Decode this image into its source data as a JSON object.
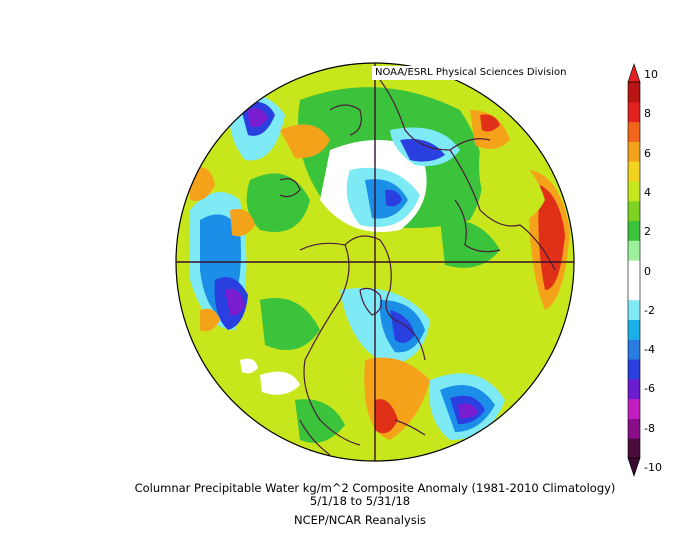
{
  "credit": "NOAA/ESRL Physical Sciences Division",
  "caption": {
    "line1": "Columnar Precipitable Water kg/m^2 Composite Anomaly (1981-2010 Climatology)",
    "line2": "5/1/18  to 5/31/18",
    "line3": "NCEP/NCAR Reanalysis"
  },
  "colorbar": {
    "labels": [
      "10",
      "8",
      "6",
      "4",
      "2",
      "0",
      "-2",
      "-4",
      "-6",
      "-8",
      "-10"
    ],
    "colors": [
      "#4a0b3a",
      "#8a0e8a",
      "#c21ec2",
      "#6a1dd0",
      "#2a3fe0",
      "#2a7be0",
      "#1bb1e8",
      "#7eeaf5",
      "#ffffff",
      "#ffffff",
      "#9cf09c",
      "#3cc33c",
      "#7ed321",
      "#c8e61c",
      "#f2d322",
      "#f5a21b",
      "#f2661c",
      "#e32020",
      "#b81414"
    ]
  },
  "palette": {
    "strong_wet": "#e03018",
    "wet": "#f5a21b",
    "moist": "#c8e61c",
    "slight_moist": "#3cc33c",
    "neutral": "#ffffff",
    "slight_dry": "#7eeaf5",
    "dry": "#1b8fe8",
    "very_dry": "#2a3fe0",
    "extreme_dry": "#7a1dd0"
  }
}
